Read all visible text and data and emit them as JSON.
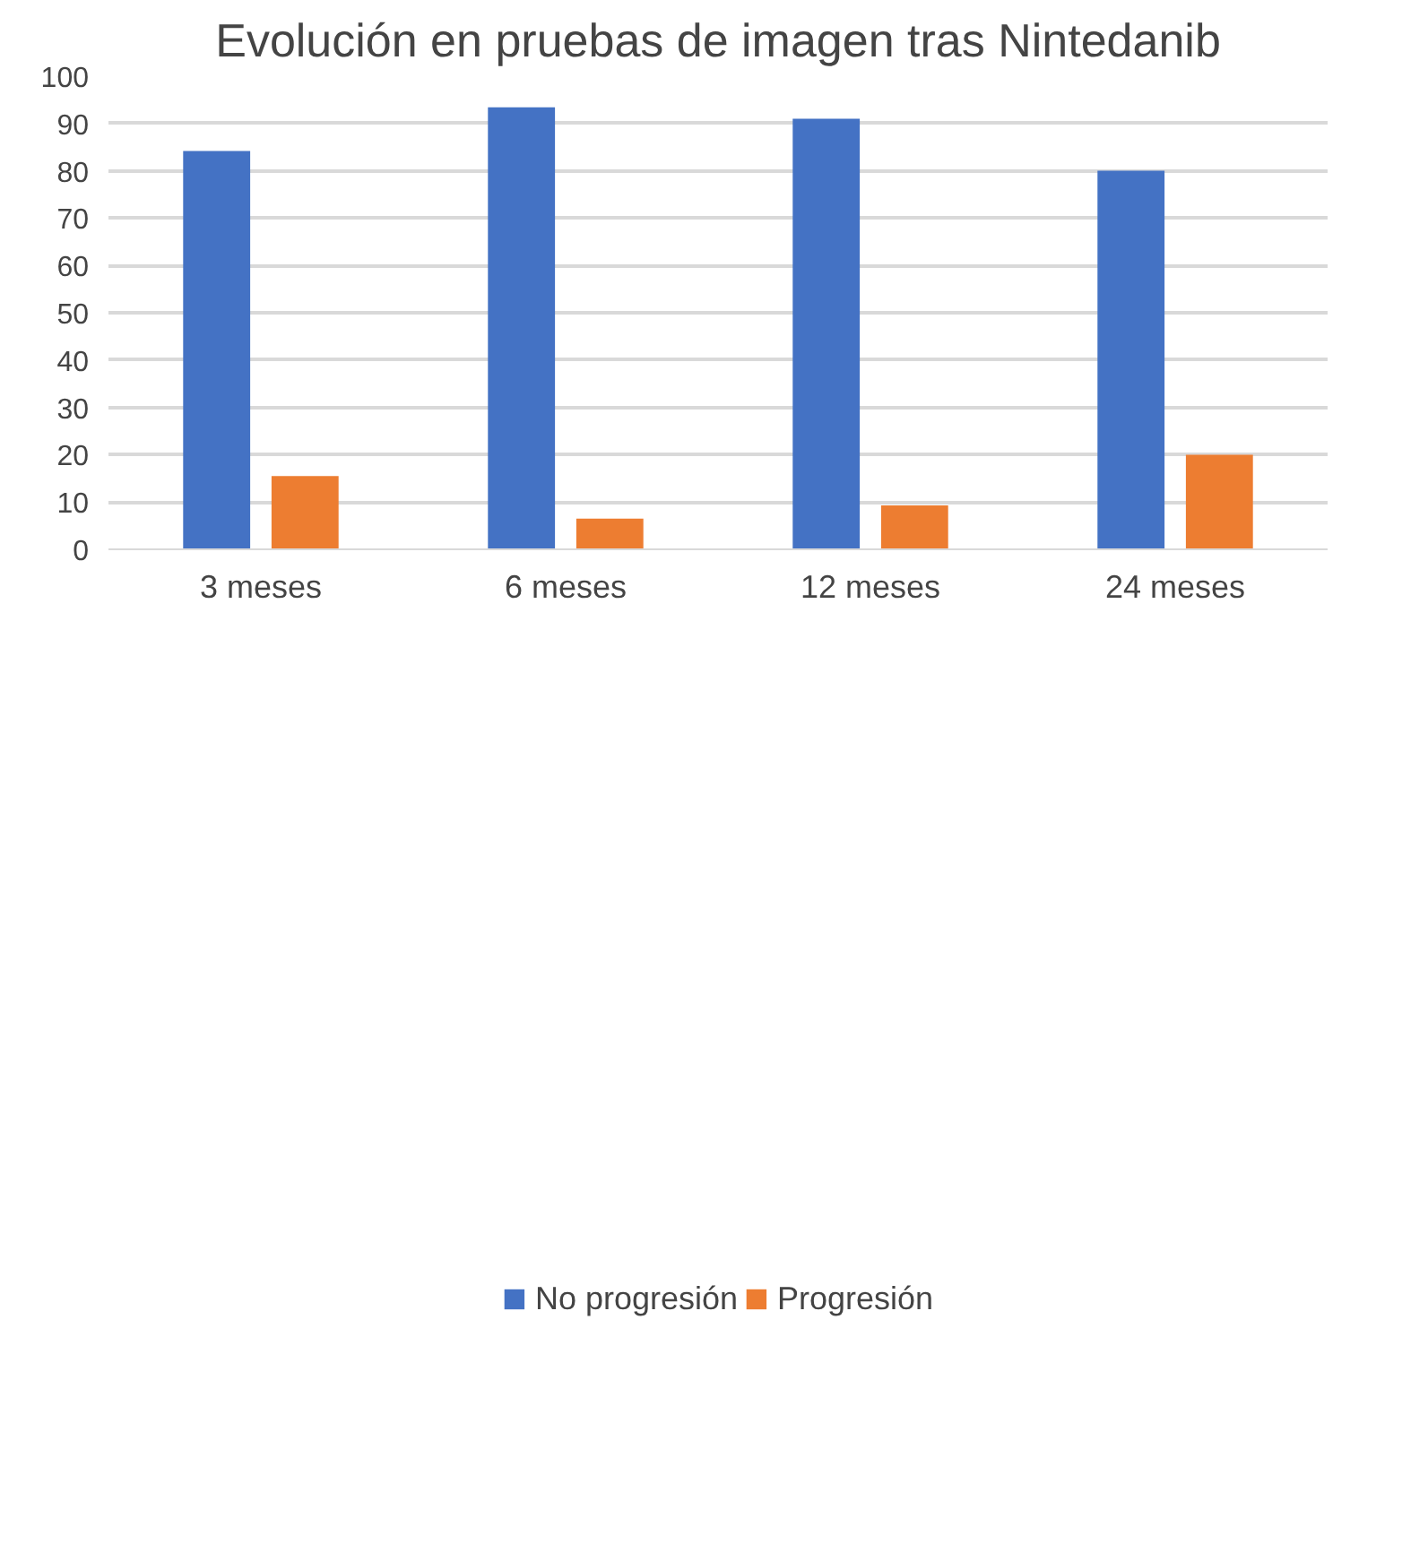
{
  "chart_data": {
    "type": "bar",
    "title": "Evolución en pruebas de imagen tras Nintedanib",
    "categories": [
      "3 meses",
      "6 meses",
      "12 meses",
      "24 meses"
    ],
    "series": [
      {
        "name": "No progresión",
        "color": "#4472c4",
        "values": [
          84.2,
          93.4,
          91.0,
          80.0
        ]
      },
      {
        "name": "Progresión",
        "color": "#ed7d31",
        "values": [
          15.5,
          6.5,
          9.3,
          20.0
        ]
      }
    ],
    "ylim": [
      0,
      100
    ],
    "yticks": [
      0,
      10,
      20,
      30,
      40,
      50,
      60,
      70,
      80,
      90,
      100
    ],
    "grid": "y",
    "legend": "bottom"
  }
}
